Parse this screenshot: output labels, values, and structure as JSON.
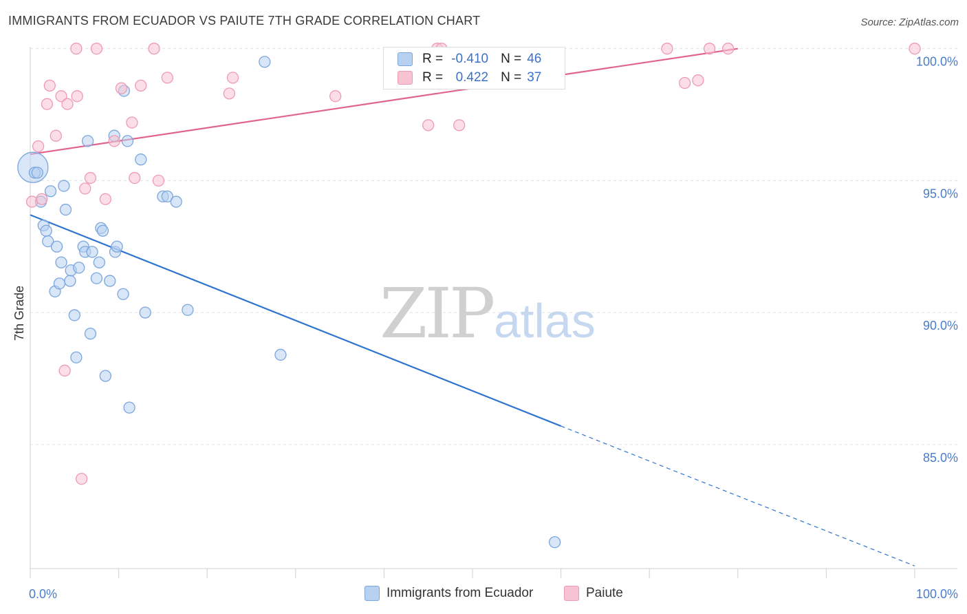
{
  "title": "IMMIGRANTS FROM ECUADOR VS PAIUTE 7TH GRADE CORRELATION CHART",
  "source": "Source: ZipAtlas.com",
  "watermark": {
    "zip": "ZIP",
    "atlas": "atlas"
  },
  "legend": {
    "rows": [
      {
        "r_label": "R =",
        "r_value": "-0.410",
        "n_label": "N =",
        "n_value": "46"
      },
      {
        "r_label": "R =",
        "r_value": "0.422",
        "n_label": "N =",
        "n_value": "37"
      }
    ]
  },
  "bottom_legend": {
    "series1": "Immigrants from Ecuador",
    "series2": "Paiute"
  },
  "colors": {
    "blue_fill": "#b8d1f0",
    "blue_stroke": "#7aa6de",
    "blue_line": "#2f74cf",
    "pink_fill": "#f7c3d3",
    "pink_stroke": "#ee9ab5",
    "pink_line": "#e0648f",
    "grid": "#e3e3e3",
    "tick_label": "#4a7cc9"
  },
  "chart_data": {
    "type": "scatter",
    "title": "IMMIGRANTS FROM ECUADOR VS PAIUTE 7TH GRADE CORRELATION CHART",
    "xlabel": "",
    "ylabel": "7th Grade",
    "xlim": [
      0,
      100
    ],
    "ylim": [
      80.3,
      100.8
    ],
    "x_ticks": [
      {
        "value": 0,
        "label": "0.0%"
      },
      {
        "value": 100,
        "label": "100.0%"
      }
    ],
    "y_ticks": [
      {
        "value": 100,
        "label": "100.0%"
      },
      {
        "value": 95,
        "label": "95.0%"
      },
      {
        "value": 90,
        "label": "90.0%"
      },
      {
        "value": 85,
        "label": "85.0%"
      }
    ],
    "series": [
      {
        "name": "Immigrants from Ecuador",
        "color": "#7aa6de",
        "r": -0.41,
        "n": 46,
        "trend": {
          "x0": 0,
          "y0": 93.7,
          "x1": 60,
          "y1": 85.7,
          "dash_to_x": 100,
          "dash_to_y": 80.4
        },
        "points": [
          [
            0.3,
            95.5,
            "large"
          ],
          [
            0.5,
            95.3
          ],
          [
            0.8,
            95.3
          ],
          [
            1.2,
            94.2
          ],
          [
            2.3,
            94.6
          ],
          [
            3.8,
            94.8
          ],
          [
            1.5,
            93.3
          ],
          [
            1.8,
            93.1
          ],
          [
            2.0,
            92.7
          ],
          [
            3.0,
            92.5
          ],
          [
            4.0,
            93.9
          ],
          [
            2.8,
            90.8
          ],
          [
            3.3,
            91.1
          ],
          [
            3.5,
            91.9
          ],
          [
            4.5,
            91.2
          ],
          [
            4.6,
            91.6
          ],
          [
            5.5,
            91.7
          ],
          [
            5.0,
            89.9
          ],
          [
            5.2,
            88.3
          ],
          [
            6.0,
            92.5
          ],
          [
            6.2,
            92.3
          ],
          [
            7.0,
            92.3
          ],
          [
            7.5,
            91.3
          ],
          [
            7.8,
            91.9
          ],
          [
            8.0,
            93.2
          ],
          [
            8.2,
            93.1
          ],
          [
            8.5,
            87.6
          ],
          [
            9.0,
            91.2
          ],
          [
            6.8,
            89.2
          ],
          [
            9.5,
            96.7
          ],
          [
            9.6,
            92.3
          ],
          [
            9.8,
            92.5
          ],
          [
            10.5,
            90.7
          ],
          [
            10.6,
            98.4
          ],
          [
            11.0,
            96.5
          ],
          [
            11.2,
            86.4
          ],
          [
            12.5,
            95.8
          ],
          [
            13.0,
            90.0
          ],
          [
            6.5,
            96.5
          ],
          [
            15.0,
            94.4
          ],
          [
            15.5,
            94.4
          ],
          [
            16.5,
            94.2
          ],
          [
            17.8,
            90.1
          ],
          [
            26.5,
            99.5
          ],
          [
            28.3,
            88.4
          ],
          [
            59.3,
            81.3
          ]
        ]
      },
      {
        "name": "Paiute",
        "color": "#ee9ab5",
        "r": 0.422,
        "n": 37,
        "trend": {
          "x0": 0,
          "y0": 96.0,
          "x1": 80,
          "y1": 100.0
        },
        "points": [
          [
            0.2,
            94.2
          ],
          [
            0.9,
            96.3
          ],
          [
            1.3,
            94.3
          ],
          [
            1.9,
            97.9
          ],
          [
            2.2,
            98.6
          ],
          [
            2.9,
            96.7
          ],
          [
            3.5,
            98.2
          ],
          [
            4.2,
            97.9
          ],
          [
            5.2,
            100.0
          ],
          [
            5.3,
            98.2
          ],
          [
            3.9,
            87.8
          ],
          [
            5.8,
            83.7
          ],
          [
            6.2,
            94.7
          ],
          [
            6.8,
            95.1
          ],
          [
            7.5,
            100.0
          ],
          [
            8.5,
            94.3
          ],
          [
            9.5,
            96.5
          ],
          [
            10.3,
            98.5
          ],
          [
            11.5,
            97.2
          ],
          [
            11.8,
            95.1
          ],
          [
            12.5,
            98.6
          ],
          [
            14.0,
            100.0
          ],
          [
            14.5,
            95.0
          ],
          [
            15.5,
            98.9
          ],
          [
            22.5,
            98.3
          ],
          [
            22.9,
            98.9
          ],
          [
            34.5,
            98.2
          ],
          [
            45.0,
            97.1
          ],
          [
            46.0,
            100.0
          ],
          [
            46.5,
            100.0
          ],
          [
            48.5,
            97.1
          ],
          [
            72.0,
            100.0
          ],
          [
            74.0,
            98.7
          ],
          [
            75.5,
            98.8
          ],
          [
            76.8,
            100.0
          ],
          [
            78.9,
            100.0
          ],
          [
            100.0,
            100.0
          ]
        ]
      }
    ],
    "grid": true,
    "legend_position": "top-center"
  }
}
